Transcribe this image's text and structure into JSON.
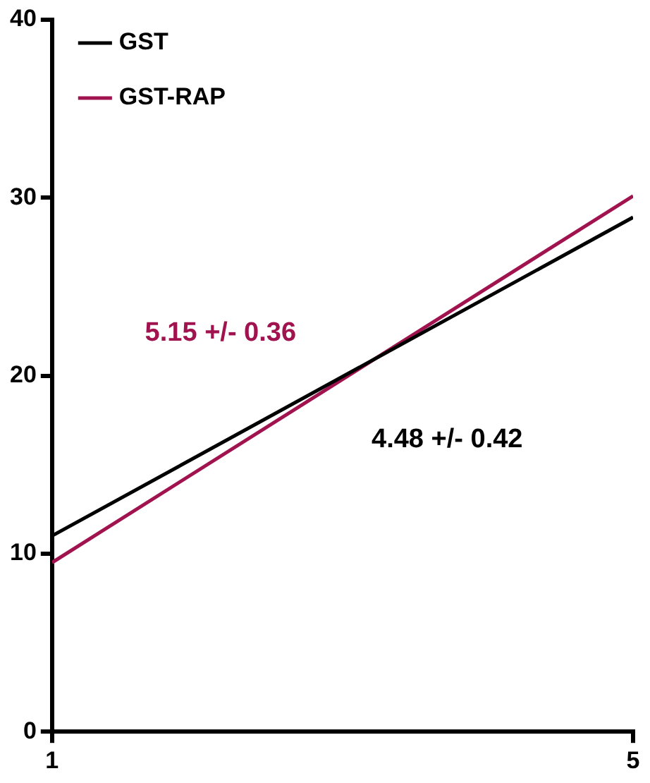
{
  "chart_data": {
    "type": "line",
    "x": [
      1,
      5
    ],
    "series": [
      {
        "name": "GST",
        "color": "#000000",
        "values": [
          11.0,
          28.9
        ]
      },
      {
        "name": "GST-RAP",
        "color": "#a0134f",
        "values": [
          9.5,
          30.1
        ]
      }
    ],
    "annotations": [
      "4.48 +/- 0.42",
      "5.15 +/- 0.36"
    ],
    "xlim": [
      1,
      5
    ],
    "xticks": [
      1,
      5
    ],
    "ylim": [
      0,
      40
    ],
    "yticks": [
      0,
      10,
      20,
      30,
      40
    ],
    "grid": false,
    "legend": "top left",
    "marker": "none",
    "line_style": "solid"
  }
}
